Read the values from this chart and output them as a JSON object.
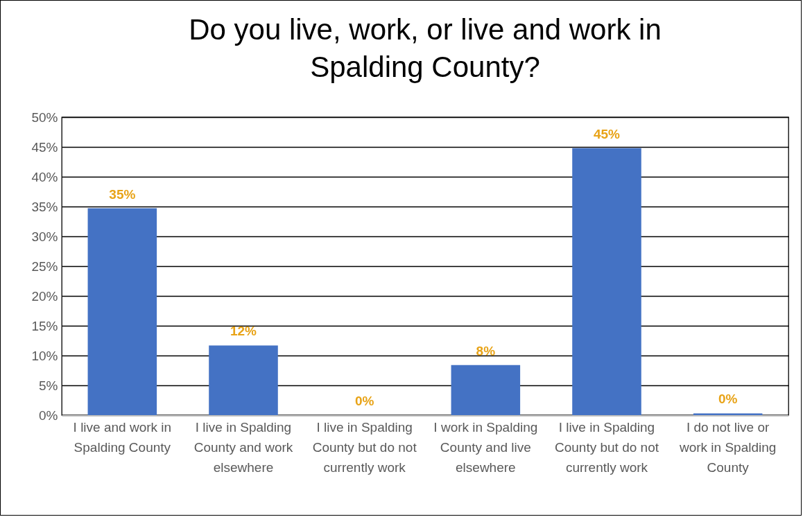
{
  "chart_data": {
    "type": "bar",
    "title": "Do you live, work, or live and work in Spalding County?",
    "categories": [
      "I live and work in Spalding County",
      "I live in Spalding County and work elsewhere",
      "I live in Spalding County but do not currently work",
      "I work in Spalding County and live elsewhere",
      "I live in Spalding County but do not currently work",
      "I do not live or work in Spalding County"
    ],
    "values": [
      34.7,
      11.7,
      0,
      8.4,
      44.8,
      0.3
    ],
    "value_labels": [
      "35%",
      "12%",
      "0%",
      "8%",
      "45%",
      "0%"
    ],
    "color": "#4472c4",
    "ylim": [
      0,
      50
    ],
    "yticks": [
      {
        "value": 0,
        "label": "0%"
      },
      {
        "value": 5,
        "label": "5%"
      },
      {
        "value": 10,
        "label": "10%"
      },
      {
        "value": 15,
        "label": "15%"
      },
      {
        "value": 20,
        "label": "20%"
      },
      {
        "value": 25,
        "label": "25%"
      },
      {
        "value": 30,
        "label": "30%"
      },
      {
        "value": 35,
        "label": "35%"
      },
      {
        "value": 40,
        "label": "40%"
      },
      {
        "value": 45,
        "label": "45%"
      },
      {
        "value": 50,
        "label": "50%"
      }
    ],
    "grid": true
  }
}
